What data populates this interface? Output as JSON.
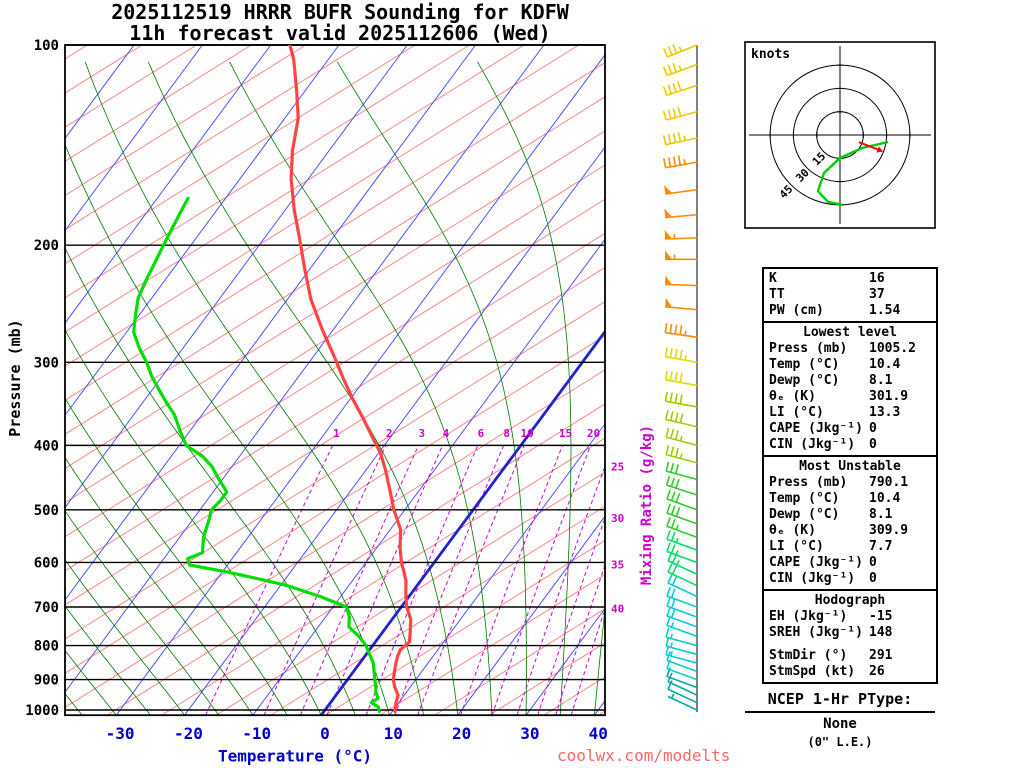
{
  "title": {
    "line1": "2025112519 HRRR BUFR Sounding for KDFW",
    "line2": "11h forecast valid 2025112606 (Wed)"
  },
  "watermark": "coolwx.com/modelts",
  "chart_data": {
    "type": "skewt_log_p_sounding",
    "pressure_axis": {
      "label": "Pressure (mb)",
      "unit": "mb",
      "scale": "log",
      "ticks": [
        100,
        200,
        300,
        400,
        500,
        600,
        700,
        800,
        900,
        1000
      ],
      "range": [
        100,
        1018
      ]
    },
    "temperature_axis": {
      "label": "Temperature (°C)",
      "unit": "°C",
      "skewed": true,
      "ticks": [
        -30,
        -20,
        -10,
        0,
        10,
        20,
        30,
        40
      ]
    },
    "isotherm_spacing_c": 10,
    "highlight_isotherm_c": 0,
    "mixing_ratio": {
      "label": "Mixing Ratio (g/kg)",
      "values_g_kg": [
        1,
        2,
        3,
        4,
        6,
        8,
        10,
        15,
        20,
        25,
        30,
        35,
        40
      ],
      "inline_labeled": [
        1,
        2,
        3,
        4,
        6,
        8,
        10,
        15,
        20
      ],
      "right_edge_labeled": [
        25,
        30,
        35,
        40
      ],
      "label_pressure_mb": 400
    },
    "temperature_profile": [
      [
        1005,
        10.4
      ],
      [
        975,
        9.6
      ],
      [
        950,
        9.1
      ],
      [
        925,
        7.8
      ],
      [
        900,
        6.7
      ],
      [
        875,
        6.0
      ],
      [
        850,
        5.3
      ],
      [
        830,
        4.8
      ],
      [
        812,
        4.5
      ],
      [
        790,
        5.0
      ],
      [
        760,
        3.9
      ],
      [
        730,
        2.7
      ],
      [
        700,
        0.8
      ],
      [
        670,
        -0.7
      ],
      [
        640,
        -2.1
      ],
      [
        620,
        -3.4
      ],
      [
        600,
        -4.8
      ],
      [
        570,
        -6.6
      ],
      [
        535,
        -8.5
      ],
      [
        500,
        -11.6
      ],
      [
        465,
        -14.5
      ],
      [
        435,
        -17.2
      ],
      [
        410,
        -19.8
      ],
      [
        392,
        -22.2
      ],
      [
        365,
        -25.9
      ],
      [
        341,
        -29.6
      ],
      [
        315,
        -33.6
      ],
      [
        295,
        -36.8
      ],
      [
        268,
        -41.6
      ],
      [
        241,
        -46.6
      ],
      [
        218,
        -50.6
      ],
      [
        196,
        -54.7
      ],
      [
        177,
        -58.7
      ],
      [
        159,
        -62.5
      ],
      [
        144,
        -65.4
      ],
      [
        129,
        -68.0
      ],
      [
        117,
        -71.3
      ],
      [
        105,
        -75.1
      ],
      [
        100,
        -77.2
      ]
    ],
    "dewpoint_profile": [
      [
        1005,
        8.1
      ],
      [
        990,
        7.5
      ],
      [
        975,
        6.0
      ],
      [
        960,
        6.5
      ],
      [
        940,
        5.5
      ],
      [
        925,
        5.0
      ],
      [
        900,
        4.0
      ],
      [
        875,
        3.0
      ],
      [
        850,
        2.0
      ],
      [
        825,
        0.5
      ],
      [
        800,
        -1.0
      ],
      [
        775,
        -3.0
      ],
      [
        750,
        -5.5
      ],
      [
        725,
        -6.5
      ],
      [
        700,
        -8.0
      ],
      [
        675,
        -13.0
      ],
      [
        650,
        -19.0
      ],
      [
        635,
        -24.0
      ],
      [
        620,
        -29.3
      ],
      [
        605,
        -35.6
      ],
      [
        592,
        -36.5
      ],
      [
        580,
        -35.0
      ],
      [
        550,
        -36.5
      ],
      [
        520,
        -37.5
      ],
      [
        500,
        -38.3
      ],
      [
        485,
        -38.0
      ],
      [
        470,
        -38.0
      ],
      [
        450,
        -40.5
      ],
      [
        430,
        -43.0
      ],
      [
        415,
        -45.5
      ],
      [
        400,
        -49.0
      ],
      [
        380,
        -51.5
      ],
      [
        360,
        -54.0
      ],
      [
        345,
        -56.5
      ],
      [
        330,
        -59.0
      ],
      [
        315,
        -61.5
      ],
      [
        300,
        -63.8
      ],
      [
        285,
        -66.5
      ],
      [
        270,
        -69.0
      ],
      [
        255,
        -70.5
      ],
      [
        240,
        -72.0
      ],
      [
        225,
        -72.8
      ],
      [
        210,
        -73.5
      ],
      [
        200,
        -74.0
      ],
      [
        190,
        -74.5
      ],
      [
        180,
        -75.0
      ],
      [
        170,
        -75.5
      ]
    ],
    "wind_profile": [
      {
        "p": 1000,
        "dir": 295,
        "spd": 8,
        "color": "#00a8a8"
      },
      {
        "p": 975,
        "dir": 295,
        "spd": 10,
        "color": "#00a8a8"
      },
      {
        "p": 950,
        "dir": 295,
        "spd": 10,
        "color": "#00a8a8"
      },
      {
        "p": 925,
        "dir": 290,
        "spd": 12,
        "color": "#00a8a8"
      },
      {
        "p": 900,
        "dir": 290,
        "spd": 12,
        "color": "#00cfcf"
      },
      {
        "p": 875,
        "dir": 290,
        "spd": 14,
        "color": "#00cfcf"
      },
      {
        "p": 850,
        "dir": 285,
        "spd": 15,
        "color": "#00cfcf"
      },
      {
        "p": 825,
        "dir": 285,
        "spd": 15,
        "color": "#00cfcf"
      },
      {
        "p": 800,
        "dir": 285,
        "spd": 18,
        "color": "#00cfcf"
      },
      {
        "p": 775,
        "dir": 290,
        "spd": 18,
        "color": "#00cfcf"
      },
      {
        "p": 750,
        "dir": 290,
        "spd": 20,
        "color": "#00cfcf"
      },
      {
        "p": 725,
        "dir": 290,
        "spd": 20,
        "color": "#00cfcf"
      },
      {
        "p": 700,
        "dir": 290,
        "spd": 22,
        "color": "#00cfcf"
      },
      {
        "p": 675,
        "dir": 295,
        "spd": 22,
        "color": "#00cfcf"
      },
      {
        "p": 650,
        "dir": 295,
        "spd": 24,
        "color": "#00dd66"
      },
      {
        "p": 625,
        "dir": 295,
        "spd": 25,
        "color": "#00dd66"
      },
      {
        "p": 600,
        "dir": 290,
        "spd": 25,
        "color": "#00dd66"
      },
      {
        "p": 575,
        "dir": 290,
        "spd": 26,
        "color": "#00dd66"
      },
      {
        "p": 550,
        "dir": 290,
        "spd": 28,
        "color": "#2ecc2e"
      },
      {
        "p": 525,
        "dir": 290,
        "spd": 30,
        "color": "#2ecc2e"
      },
      {
        "p": 500,
        "dir": 290,
        "spd": 30,
        "color": "#2ecc2e"
      },
      {
        "p": 475,
        "dir": 288,
        "spd": 32,
        "color": "#2ecc2e"
      },
      {
        "p": 450,
        "dir": 285,
        "spd": 34,
        "color": "#2ecc2e"
      },
      {
        "p": 425,
        "dir": 285,
        "spd": 36,
        "color": "#9acd00"
      },
      {
        "p": 400,
        "dir": 285,
        "spd": 38,
        "color": "#9acd00"
      },
      {
        "p": 375,
        "dir": 283,
        "spd": 40,
        "color": "#9acd00"
      },
      {
        "p": 350,
        "dir": 280,
        "spd": 42,
        "color": "#9acd00"
      },
      {
        "p": 325,
        "dir": 280,
        "spd": 44,
        "color": "#dcdc00"
      },
      {
        "p": 300,
        "dir": 280,
        "spd": 46,
        "color": "#dcdc00"
      },
      {
        "p": 275,
        "dir": 278,
        "spd": 48,
        "color": "#ff8c00"
      },
      {
        "p": 250,
        "dir": 275,
        "spd": 50,
        "color": "#ff8c00"
      },
      {
        "p": 230,
        "dir": 272,
        "spd": 52,
        "color": "#ff8c00"
      },
      {
        "p": 210,
        "dir": 270,
        "spd": 55,
        "color": "#ff8c00"
      },
      {
        "p": 195,
        "dir": 268,
        "spd": 55,
        "color": "#ff8c00"
      },
      {
        "p": 180,
        "dir": 265,
        "spd": 52,
        "color": "#ff8c00"
      },
      {
        "p": 165,
        "dir": 262,
        "spd": 50,
        "color": "#ff8c00"
      },
      {
        "p": 150,
        "dir": 260,
        "spd": 48,
        "color": "#ff8c00"
      },
      {
        "p": 138,
        "dir": 258,
        "spd": 45,
        "color": "#eec900"
      },
      {
        "p": 126,
        "dir": 255,
        "spd": 42,
        "color": "#eec900"
      },
      {
        "p": 115,
        "dir": 252,
        "spd": 40,
        "color": "#eec900"
      },
      {
        "p": 107,
        "dir": 250,
        "spd": 38,
        "color": "#eec900"
      },
      {
        "p": 100,
        "dir": 248,
        "spd": 35,
        "color": "#eec900"
      }
    ],
    "hodograph": {
      "unit_label": "knots",
      "ring_radii_kt": [
        15,
        30,
        45
      ],
      "trace_uv_kt": [
        [
          30.9,
          -4.5
        ],
        [
          14.2,
          -8.4
        ],
        [
          0,
          -14.8
        ],
        [
          -10.3,
          -24.5
        ],
        [
          -14.2,
          -36.1
        ],
        [
          -7.7,
          -43.1
        ],
        [
          1.9,
          -45.1
        ]
      ],
      "storm_motion": {
        "dir_deg": 291,
        "spd_kt": 26
      }
    },
    "colors": {
      "temperature": "#ff4444",
      "dewpoint": "#00dd00",
      "isotherm": "#5050ff",
      "isotherm_zero": "#2222cc",
      "dry_line": "#ff8080",
      "moist_adiabat": "#007700",
      "mixing_ratio": "#cc00cc",
      "axis_text": "#0000cc",
      "watermark": "#ff6666"
    }
  },
  "stats_panel": {
    "sections": [
      {
        "header": null,
        "rows": [
          [
            "K",
            "16"
          ],
          [
            "TT",
            "37"
          ],
          [
            "PW (cm)",
            "1.54"
          ]
        ]
      },
      {
        "header": "Lowest level",
        "rows": [
          [
            "Press (mb)",
            "1005.2"
          ],
          [
            "Temp (°C)",
            "10.4"
          ],
          [
            "Dewp (°C)",
            "8.1"
          ],
          [
            "θₑ (K)",
            "301.9"
          ],
          [
            "LI (°C)",
            "13.3"
          ],
          [
            "CAPE (Jkg⁻¹)",
            "0"
          ],
          [
            "CIN (Jkg⁻¹)",
            "0"
          ]
        ]
      },
      {
        "header": "Most Unstable",
        "rows": [
          [
            "Press (mb)",
            "790.1"
          ],
          [
            "Temp (°C)",
            "10.4"
          ],
          [
            "Dewp (°C)",
            "8.1"
          ],
          [
            "θₑ (K)",
            "309.9"
          ],
          [
            "LI (°C)",
            "7.7"
          ],
          [
            "CAPE (Jkg⁻¹)",
            "0"
          ],
          [
            "CIN (Jkg⁻¹)",
            "0"
          ]
        ]
      },
      {
        "header": "Hodograph",
        "rows": [
          [
            "EH (Jkg⁻¹)",
            "-15"
          ],
          [
            "SREH (Jkg⁻¹)",
            "148"
          ],
          [
            "StmDir (°)",
            "291"
          ],
          [
            "StmSpd (kt)",
            "26"
          ]
        ]
      }
    ]
  },
  "ptype": {
    "title": "NCEP 1-Hr PType:",
    "value": "None",
    "detail": "(0\" L.E.)"
  }
}
